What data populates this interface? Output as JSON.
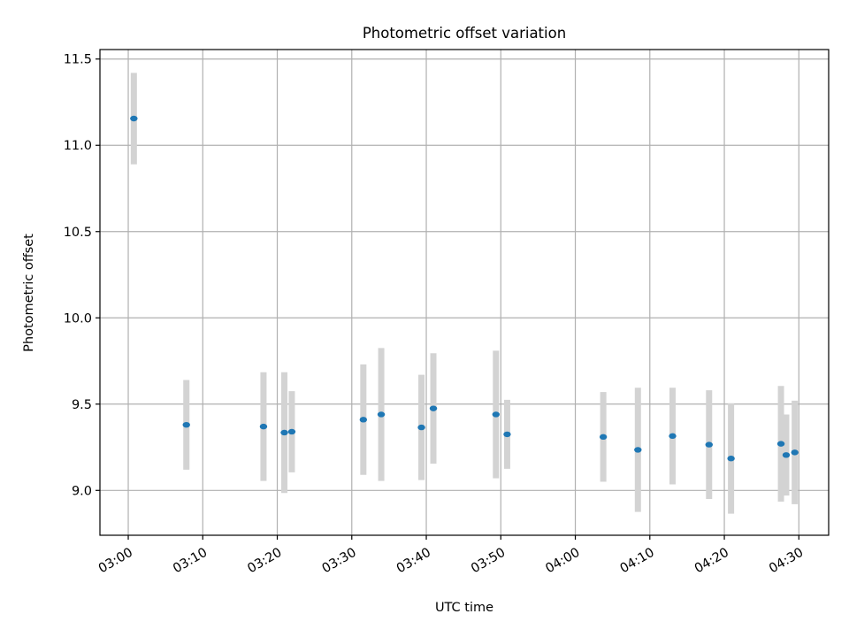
{
  "chart_data": {
    "type": "scatter",
    "title": "Photometric offset variation",
    "xlabel": "UTC time",
    "ylabel": "Photometric offset",
    "xlim_minutes": [
      -3.8,
      94.0
    ],
    "ylim": [
      8.74,
      11.555
    ],
    "grid": true,
    "x_ticks": [
      {
        "minute": 0,
        "label": "03:00"
      },
      {
        "minute": 10,
        "label": "03:10"
      },
      {
        "minute": 20,
        "label": "03:20"
      },
      {
        "minute": 30,
        "label": "03:30"
      },
      {
        "minute": 40,
        "label": "03:40"
      },
      {
        "minute": 50,
        "label": "03:50"
      },
      {
        "minute": 60,
        "label": "04:00"
      },
      {
        "minute": 70,
        "label": "04:10"
      },
      {
        "minute": 80,
        "label": "04:20"
      },
      {
        "minute": 90,
        "label": "04:30"
      }
    ],
    "y_ticks": [
      {
        "value": 9.0,
        "label": "9.0"
      },
      {
        "value": 9.5,
        "label": "9.5"
      },
      {
        "value": 10.0,
        "label": "10.0"
      },
      {
        "value": 10.5,
        "label": "10.5"
      },
      {
        "value": 11.0,
        "label": "11.0"
      },
      {
        "value": 11.5,
        "label": "11.5"
      }
    ],
    "colors": {
      "points": "#1f77b4",
      "errorbars": "#d3d3d3",
      "grid": "#b0b0b0"
    },
    "series": [
      {
        "name": "offset",
        "points": [
          {
            "t": 0.75,
            "y": 11.155,
            "err": 0.265
          },
          {
            "t": 7.8,
            "y": 9.38,
            "err": 0.26
          },
          {
            "t": 18.15,
            "y": 9.37,
            "err": 0.315
          },
          {
            "t": 20.95,
            "y": 9.335,
            "err": 0.35
          },
          {
            "t": 21.95,
            "y": 9.34,
            "err": 0.235
          },
          {
            "t": 31.55,
            "y": 9.41,
            "err": 0.32
          },
          {
            "t": 33.95,
            "y": 9.44,
            "err": 0.385
          },
          {
            "t": 39.35,
            "y": 9.365,
            "err": 0.305
          },
          {
            "t": 40.95,
            "y": 9.475,
            "err": 0.32
          },
          {
            "t": 49.35,
            "y": 9.44,
            "err": 0.37
          },
          {
            "t": 50.85,
            "y": 9.325,
            "err": 0.2
          },
          {
            "t": 63.75,
            "y": 9.31,
            "err": 0.26
          },
          {
            "t": 68.4,
            "y": 9.235,
            "err": 0.36
          },
          {
            "t": 73.05,
            "y": 9.315,
            "err": 0.28
          },
          {
            "t": 77.95,
            "y": 9.265,
            "err": 0.315
          },
          {
            "t": 80.9,
            "y": 9.185,
            "err": 0.32
          },
          {
            "t": 87.6,
            "y": 9.27,
            "err": 0.335
          },
          {
            "t": 88.3,
            "y": 9.205,
            "err": 0.235
          },
          {
            "t": 89.45,
            "y": 9.22,
            "err": 0.3
          }
        ]
      }
    ]
  }
}
